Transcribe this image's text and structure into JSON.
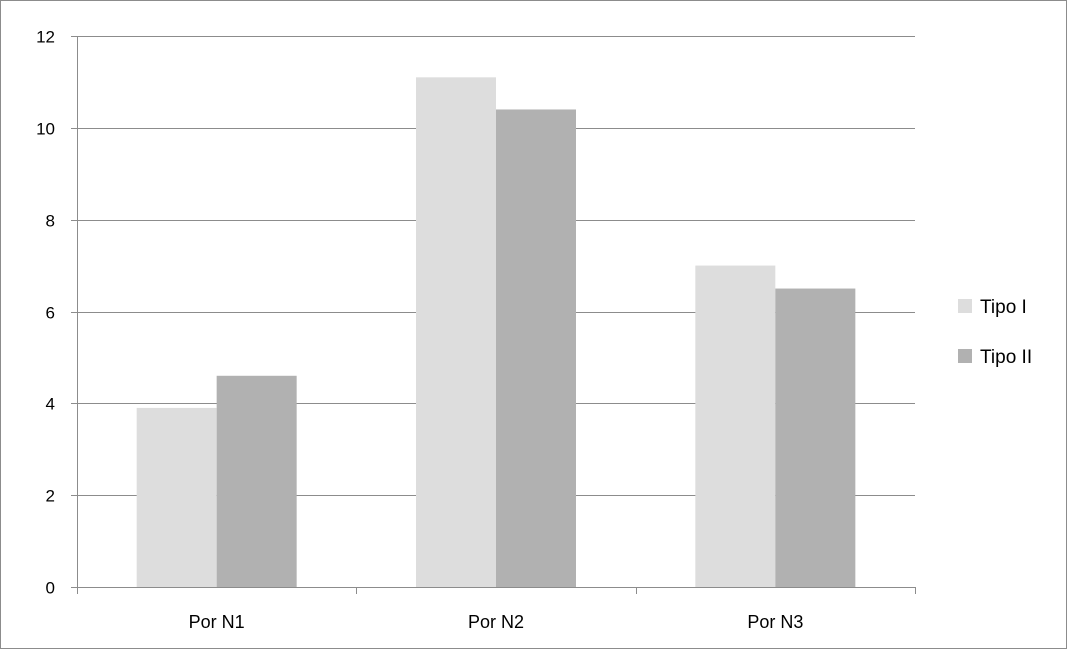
{
  "chart_data": {
    "type": "bar",
    "categories": [
      "Por N1",
      "Por N2",
      "Por N3"
    ],
    "series": [
      {
        "name": "Tipo I",
        "values": [
          3.9,
          11.1,
          7.0
        ],
        "color": "#dddddd"
      },
      {
        "name": "Tipo II",
        "values": [
          4.6,
          10.4,
          6.5
        ],
        "color": "#b1b1b1"
      }
    ],
    "ylim": [
      0,
      12
    ],
    "yticks": [
      "0",
      "2",
      "4",
      "6",
      "8",
      "10",
      "12"
    ],
    "grid": true,
    "legend": "right"
  }
}
